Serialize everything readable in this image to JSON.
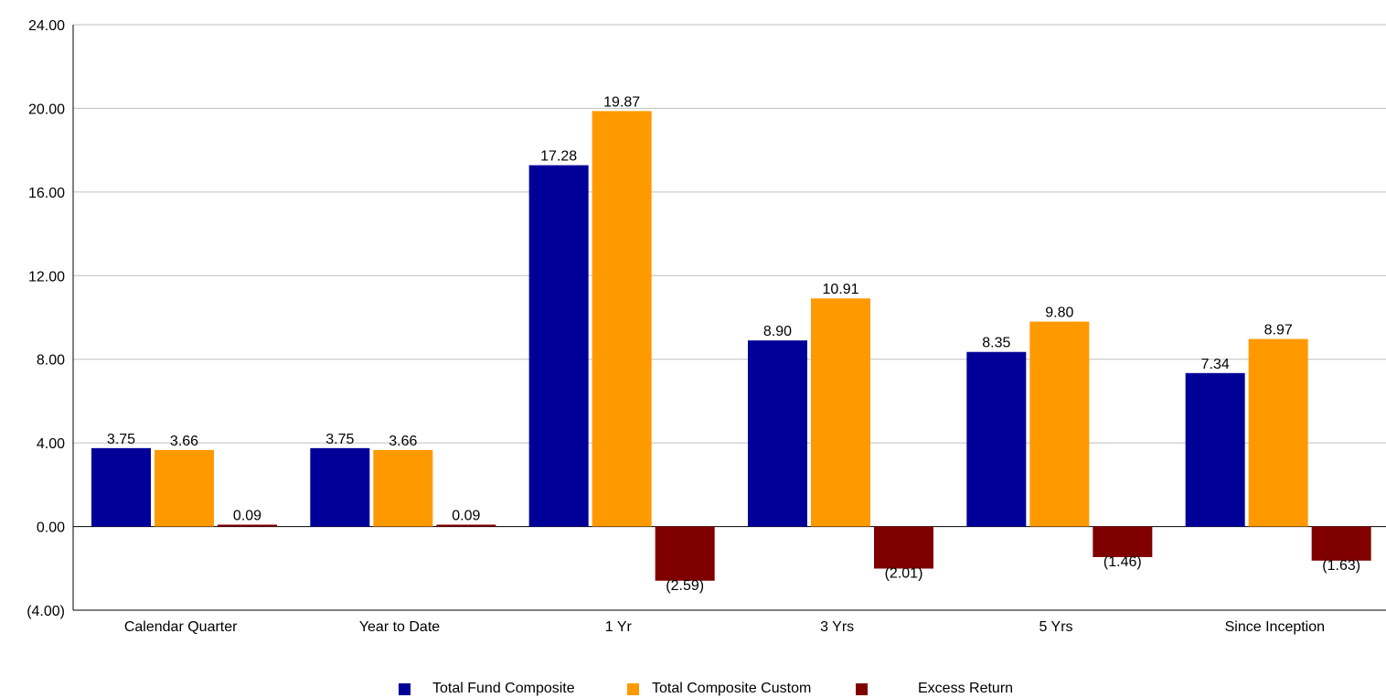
{
  "chart_data": {
    "type": "bar",
    "categories": [
      "Calendar Quarter",
      "Year to Date",
      "1 Yr",
      "3 Yrs",
      "5 Yrs",
      "Since Inception"
    ],
    "series": [
      {
        "name": "Total Fund Composite",
        "color": "#000099",
        "values": [
          3.75,
          3.75,
          17.28,
          8.9,
          8.35,
          7.34
        ],
        "labels": [
          "3.75",
          "3.75",
          "17.28",
          "8.90",
          "8.35",
          "7.34"
        ]
      },
      {
        "name": "Total Composite Custom",
        "color": "#ff9900",
        "values": [
          3.66,
          3.66,
          19.87,
          10.91,
          9.8,
          8.97
        ],
        "labels": [
          "3.66",
          "3.66",
          "19.87",
          "10.91",
          "9.80",
          "8.97"
        ]
      },
      {
        "name": "Excess Return",
        "color": "#800000",
        "values": [
          0.09,
          0.09,
          -2.59,
          -2.01,
          -1.46,
          -1.63
        ],
        "labels": [
          "0.09",
          "0.09",
          "(2.59)",
          "(2.01)",
          "(1.46)",
          "(1.63)"
        ]
      }
    ],
    "yticks": [
      {
        "value": -4,
        "label": "(4.00)"
      },
      {
        "value": 0,
        "label": "0.00"
      },
      {
        "value": 4,
        "label": "4.00"
      },
      {
        "value": 8,
        "label": "8.00"
      },
      {
        "value": 12,
        "label": "12.00"
      },
      {
        "value": 16,
        "label": "16.00"
      },
      {
        "value": 20,
        "label": "20.00"
      },
      {
        "value": 24,
        "label": "24.00"
      }
    ],
    "ylim": [
      -4,
      24
    ],
    "grid": true,
    "legend_position": "bottom"
  }
}
